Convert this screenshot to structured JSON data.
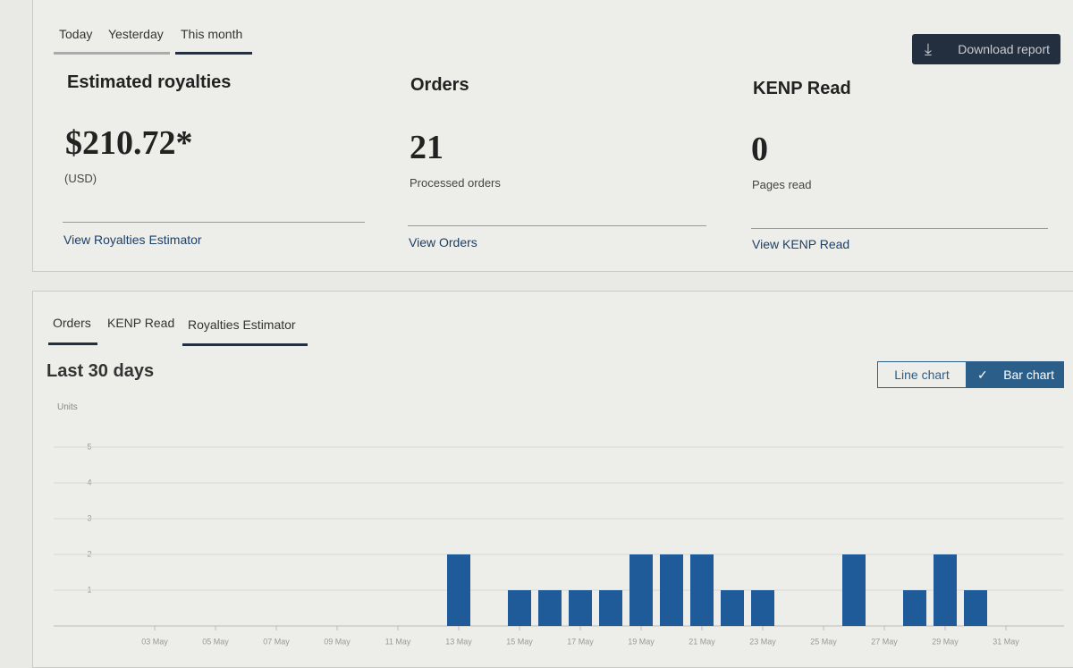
{
  "period_tabs": [
    "Today",
    "Yesterday",
    "This month"
  ],
  "download_button": "Download report",
  "cards": [
    {
      "title": "Estimated royalties",
      "value": "$210.72*",
      "caption": "(USD)",
      "link": "View Royalties Estimator"
    },
    {
      "title": "Orders",
      "value": "21",
      "caption": "Processed orders",
      "link": "View Orders"
    },
    {
      "title": "KENP Read",
      "value": "0",
      "caption": "Pages read",
      "link": "View KENP Read"
    }
  ],
  "chart_tabs": [
    "Orders",
    "KENP Read",
    "Royalties Estimator"
  ],
  "chart_heading": "Last 30 days",
  "chart_toggle": [
    "Line chart",
    "Bar chart"
  ],
  "chart_data": {
    "type": "bar",
    "y_label": "Units",
    "color": "#1f5a99",
    "categories": [
      null,
      "03 May",
      null,
      "05 May",
      null,
      "07 May",
      null,
      "09 May",
      null,
      "11 May",
      null,
      "13 May",
      null,
      "15 May",
      null,
      "17 May",
      null,
      "19 May",
      null,
      "21 May",
      null,
      "23 May",
      null,
      "25 May",
      null,
      "27 May",
      null,
      "29 May",
      null,
      "31 May"
    ],
    "values": [
      0,
      0,
      0,
      0,
      0,
      0,
      0,
      0,
      0,
      0,
      0,
      2,
      0,
      1,
      1,
      1,
      1,
      2,
      2,
      2,
      1,
      1,
      0,
      0,
      2,
      0,
      1,
      2,
      1,
      0
    ],
    "ylim": [
      0,
      5.5
    ],
    "yticks": [
      1,
      2,
      3,
      4,
      5
    ],
    "grid": true
  }
}
